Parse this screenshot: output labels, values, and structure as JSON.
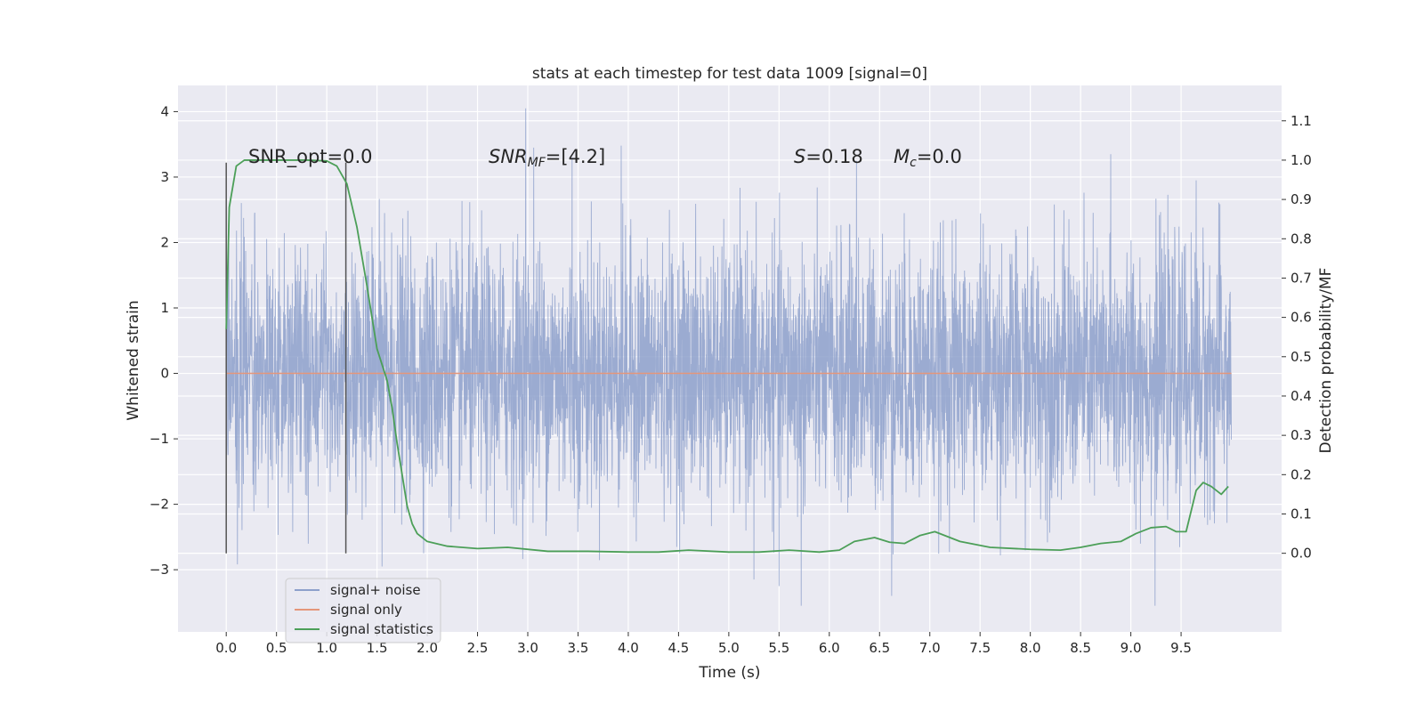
{
  "chart_data": {
    "type": "line",
    "title": "stats at each timestep for test data 1009 [signal=0]",
    "xlabel": "Time (s)",
    "ylabel": "Whitened strain",
    "ylabel_right": "Detection probability/MF",
    "xlim": [
      -0.48,
      10.5
    ],
    "ylim": [
      -3.95,
      4.4
    ],
    "y2lim": [
      -0.2,
      1.19
    ],
    "x_ticks": [
      0.0,
      0.5,
      1.0,
      1.5,
      2.0,
      2.5,
      3.0,
      3.5,
      4.0,
      4.5,
      5.0,
      5.5,
      6.0,
      6.5,
      7.0,
      7.5,
      8.0,
      8.5,
      9.0,
      9.5
    ],
    "x_tick_labels": [
      "0.0",
      "0.5",
      "1.0",
      "1.5",
      "2.0",
      "2.5",
      "3.0",
      "3.5",
      "4.0",
      "4.5",
      "5.0",
      "5.5",
      "6.0",
      "6.5",
      "7.0",
      "7.5",
      "8.0",
      "8.5",
      "9.0",
      "9.5"
    ],
    "y_ticks": [
      -3,
      -2,
      -1,
      0,
      1,
      2,
      3,
      4
    ],
    "y_tick_labels": [
      "−3",
      "−2",
      "−1",
      "0",
      "1",
      "2",
      "3",
      "4"
    ],
    "y2_ticks": [
      0.0,
      0.1,
      0.2,
      0.3,
      0.4,
      0.5,
      0.6,
      0.7,
      0.8,
      0.9,
      1.0,
      1.1
    ],
    "y2_tick_labels": [
      "0.0",
      "0.1",
      "0.2",
      "0.3",
      "0.4",
      "0.5",
      "0.6",
      "0.7",
      "0.8",
      "0.9",
      "1.0",
      "1.1"
    ],
    "grid": true,
    "legend_position": "lower-left",
    "annotations": {
      "snr_opt": "SNR_opt=0.0",
      "snr_mf_base": "SNR",
      "snr_mf_sub": "MF",
      "snr_mf_val": "=[4.2]",
      "s_label": "S",
      "s_val": "=0.18",
      "mc_base": "M",
      "mc_sub": "c",
      "mc_val": "=0.0"
    },
    "vlines": [
      0.0,
      1.19
    ],
    "vline_range": [
      -2.75,
      3.22
    ],
    "colors": {
      "noise": "#8da0cb",
      "signal": "#e5967a",
      "stats": "#4c9f58",
      "vline": "#555555",
      "background": "#eaeaf2",
      "grid": "#ffffff"
    },
    "series": [
      {
        "name": "signal+ noise",
        "x_range": [
          0.0,
          10.0
        ],
        "band_1sigma": [
          -1.0,
          1.0
        ],
        "envelope_typical": [
          -2.0,
          2.2
        ],
        "peaks": [
          {
            "x": 2.98,
            "y": 4.05
          },
          {
            "x": 3.06,
            "y": 3.45
          },
          {
            "x": 3.44,
            "y": 3.3
          },
          {
            "x": 3.93,
            "y": 3.48
          },
          {
            "x": 8.8,
            "y": 3.35
          },
          {
            "x": 6.27,
            "y": 3.25
          },
          {
            "x": 9.65,
            "y": 2.95
          },
          {
            "x": 5.72,
            "y": -3.55
          },
          {
            "x": 9.24,
            "y": -3.55
          },
          {
            "x": 6.62,
            "y": -3.4
          },
          {
            "x": 5.5,
            "y": -3.25
          },
          {
            "x": 5.25,
            "y": -3.15
          },
          {
            "x": 1.55,
            "y": -2.95
          }
        ]
      },
      {
        "name": "signal only",
        "x": [
          0.0,
          10.0
        ],
        "y": [
          0.0,
          0.0
        ]
      },
      {
        "name": "signal statistics",
        "x": [
          0.0,
          0.03,
          0.1,
          0.18,
          0.3,
          0.5,
          0.8,
          1.0,
          1.1,
          1.2,
          1.3,
          1.4,
          1.5,
          1.6,
          1.65,
          1.7,
          1.75,
          1.8,
          1.85,
          1.9,
          2.0,
          2.2,
          2.5,
          2.8,
          3.2,
          3.6,
          4.0,
          4.3,
          4.6,
          5.0,
          5.3,
          5.6,
          5.9,
          6.1,
          6.25,
          6.45,
          6.6,
          6.75,
          6.9,
          7.05,
          7.3,
          7.6,
          8.0,
          8.3,
          8.5,
          8.7,
          8.9,
          9.05,
          9.2,
          9.35,
          9.45,
          9.55,
          9.65,
          9.72,
          9.8,
          9.9,
          9.97
        ],
        "y": [
          0.57,
          0.88,
          0.985,
          1.0,
          1.0,
          1.0,
          1.0,
          0.998,
          0.985,
          0.94,
          0.83,
          0.68,
          0.52,
          0.44,
          0.37,
          0.28,
          0.2,
          0.12,
          0.075,
          0.05,
          0.03,
          0.018,
          0.012,
          0.015,
          0.005,
          0.005,
          0.003,
          0.003,
          0.008,
          0.003,
          0.003,
          0.008,
          0.003,
          0.008,
          0.03,
          0.04,
          0.028,
          0.025,
          0.045,
          0.055,
          0.03,
          0.015,
          0.01,
          0.008,
          0.015,
          0.025,
          0.03,
          0.05,
          0.065,
          0.068,
          0.055,
          0.055,
          0.16,
          0.18,
          0.17,
          0.15,
          0.17
        ]
      }
    ]
  }
}
